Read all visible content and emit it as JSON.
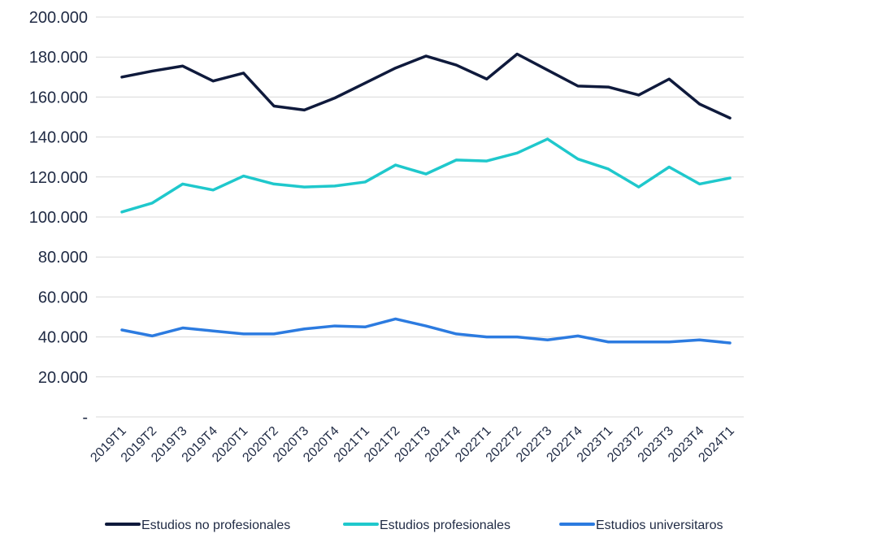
{
  "chart_data": {
    "type": "line",
    "title": "",
    "xlabel": "",
    "ylabel": "",
    "ylim": [
      0,
      200000
    ],
    "y_ticks": [
      0,
      20000,
      40000,
      60000,
      80000,
      100000,
      120000,
      140000,
      160000,
      180000,
      200000
    ],
    "y_tick_labels": [
      "-",
      "20.000",
      "40.000",
      "60.000",
      "80.000",
      "100.000",
      "120.000",
      "140.000",
      "160.000",
      "180.000",
      "200.000"
    ],
    "grid": true,
    "legend_position": "bottom",
    "categories": [
      "2019T1",
      "2019T2",
      "2019T3",
      "2019T4",
      "2020T1",
      "2020T2",
      "2020T3",
      "2020T4",
      "2021T1",
      "2021T2",
      "2021T3",
      "2021T4",
      "2022T1",
      "2022T2",
      "2022T3",
      "2022T4",
      "2023T1",
      "2023T2",
      "2023T3",
      "2023T4",
      "2024T1"
    ],
    "series": [
      {
        "name": "Estudios no profesionales",
        "color": "#0f1a3c",
        "values": [
          170000,
          173000,
          175500,
          168000,
          172000,
          155500,
          153500,
          159500,
          167000,
          174500,
          180500,
          176000,
          169000,
          181500,
          173500,
          165500,
          165000,
          161000,
          169000,
          156500,
          149500
        ]
      },
      {
        "name": "Estudios profesionales",
        "color": "#1fc8cc",
        "values": [
          102500,
          107000,
          116500,
          113500,
          120500,
          116500,
          115000,
          115500,
          117500,
          126000,
          121500,
          128500,
          128000,
          132000,
          139000,
          129000,
          124000,
          115000,
          125000,
          116500,
          119500
        ]
      },
      {
        "name": "Estudios universitaros",
        "color": "#2c7be0",
        "values": [
          43500,
          40500,
          44500,
          43000,
          41500,
          41500,
          44000,
          45500,
          45000,
          49000,
          45500,
          41500,
          40000,
          40000,
          38500,
          40500,
          37500,
          37500,
          37500,
          38500,
          37000
        ]
      }
    ]
  }
}
